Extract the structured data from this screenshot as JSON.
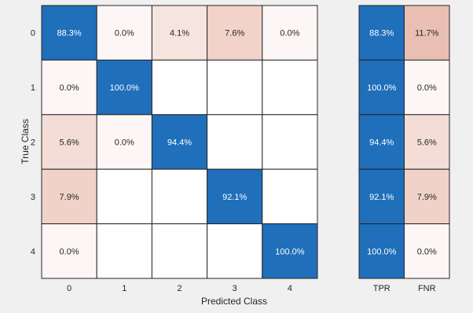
{
  "chart_data": {
    "type": "heatmap",
    "title": "",
    "xlabel": "Predicted Class",
    "ylabel": "True Class",
    "classes": [
      "0",
      "1",
      "2",
      "3",
      "4"
    ],
    "matrix": [
      [
        88.3,
        0.0,
        4.1,
        7.6,
        0.0
      ],
      [
        0.0,
        100.0,
        null,
        null,
        null
      ],
      [
        5.6,
        0.0,
        94.4,
        null,
        null
      ],
      [
        7.9,
        null,
        null,
        92.1,
        null
      ],
      [
        0.0,
        null,
        null,
        null,
        100.0
      ]
    ],
    "matrix_labels": [
      [
        "88.3%",
        "0.0%",
        "4.1%",
        "7.6%",
        "0.0%"
      ],
      [
        "0.0%",
        "100.0%",
        "",
        "",
        ""
      ],
      [
        "5.6%",
        "0.0%",
        "94.4%",
        "",
        ""
      ],
      [
        "7.9%",
        "",
        "",
        "92.1%",
        ""
      ],
      [
        "0.0%",
        "",
        "",
        "",
        "100.0%"
      ]
    ],
    "summary_columns": [
      "TPR",
      "FNR"
    ],
    "summary": [
      [
        88.3,
        11.7
      ],
      [
        100.0,
        0.0
      ],
      [
        94.4,
        5.6
      ],
      [
        92.1,
        7.9
      ],
      [
        100.0,
        0.0
      ]
    ],
    "summary_labels": [
      [
        "88.3%",
        "11.7%"
      ],
      [
        "100.0%",
        "0.0%"
      ],
      [
        "94.4%",
        "5.6%"
      ],
      [
        "92.1%",
        "7.9%"
      ],
      [
        "100.0%",
        "0.0%"
      ]
    ],
    "colors": {
      "diagonal": "#1f6fba",
      "off_diagonal": "#c0401a",
      "empty": "#ffffff",
      "background": "#f0f0f0"
    }
  }
}
